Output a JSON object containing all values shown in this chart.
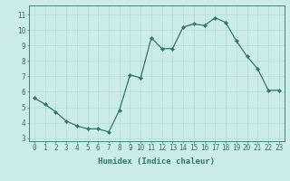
{
  "x": [
    0,
    1,
    2,
    3,
    4,
    5,
    6,
    7,
    8,
    9,
    10,
    11,
    12,
    13,
    14,
    15,
    16,
    17,
    18,
    19,
    20,
    21,
    22,
    23
  ],
  "y": [
    5.6,
    5.2,
    4.7,
    4.1,
    3.8,
    3.6,
    3.6,
    3.4,
    4.8,
    7.1,
    6.9,
    9.5,
    8.8,
    8.8,
    10.2,
    10.4,
    10.3,
    10.8,
    10.5,
    9.3,
    8.3,
    7.5,
    6.1,
    6.1
  ],
  "line_color": "#2a7a6a",
  "marker": "D",
  "marker_size": 2.2,
  "bg_color": "#ccecea",
  "grid_color": "#b8d8d6",
  "xlabel": "Humidex (Indice chaleur)",
  "xlim": [
    -0.5,
    23.5
  ],
  "ylim": [
    2.8,
    11.6
  ],
  "yticks": [
    3,
    4,
    5,
    6,
    7,
    8,
    9,
    10,
    11
  ],
  "xticks": [
    0,
    1,
    2,
    3,
    4,
    5,
    6,
    7,
    8,
    9,
    10,
    11,
    12,
    13,
    14,
    15,
    16,
    17,
    18,
    19,
    20,
    21,
    22,
    23
  ],
  "tick_color": "#2a7a6a",
  "axis_color": "#2a7a6a",
  "fontsize_label": 6.5,
  "fontsize_tick": 5.5
}
